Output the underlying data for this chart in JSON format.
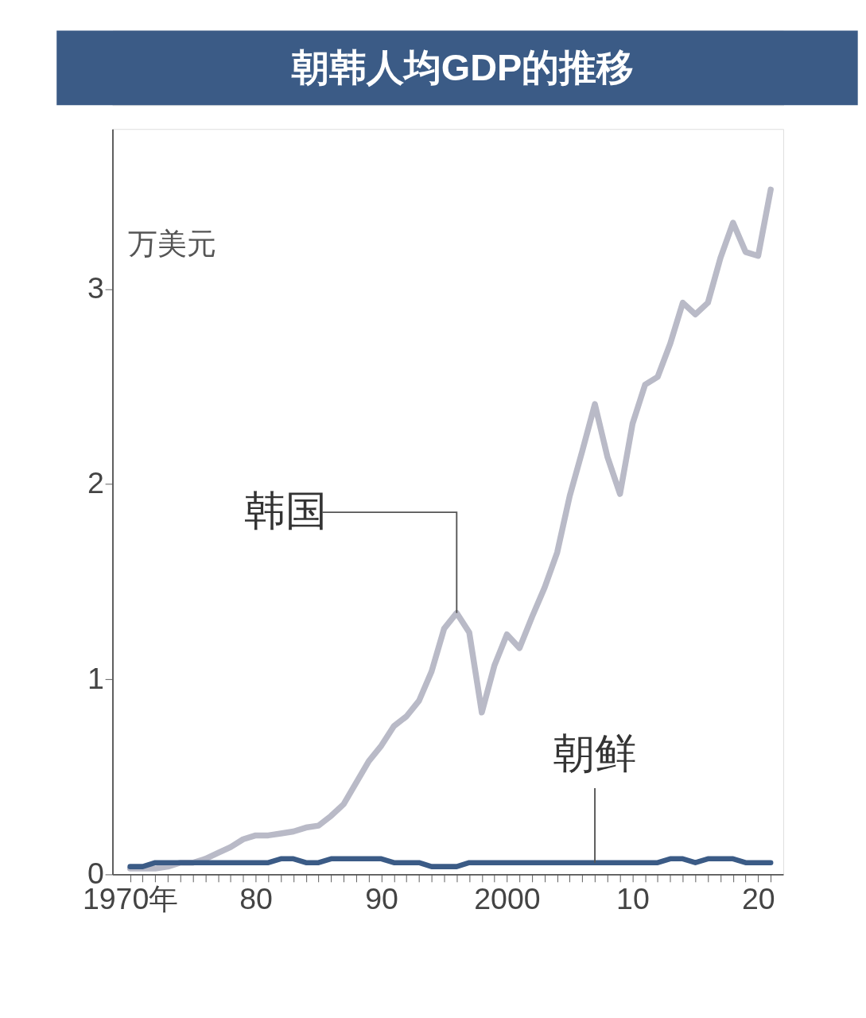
{
  "chart_data": {
    "type": "line",
    "title": "朝韩人均GDP的推移",
    "ylabel": "万美元",
    "x": [
      1970,
      1971,
      1972,
      1973,
      1974,
      1975,
      1976,
      1977,
      1978,
      1979,
      1980,
      1981,
      1982,
      1983,
      1984,
      1985,
      1986,
      1987,
      1988,
      1989,
      1990,
      1991,
      1992,
      1993,
      1994,
      1995,
      1996,
      1997,
      1998,
      1999,
      2000,
      2001,
      2002,
      2003,
      2004,
      2005,
      2006,
      2007,
      2008,
      2009,
      2010,
      2011,
      2012,
      2013,
      2014,
      2015,
      2016,
      2017,
      2018,
      2019,
      2020,
      2021
    ],
    "series": [
      {
        "color": "#b9bac7",
        "values": [
          0.03,
          0.03,
          0.03,
          0.04,
          0.06,
          0.06,
          0.08,
          0.11,
          0.14,
          0.18,
          0.2,
          0.2,
          0.21,
          0.22,
          0.24,
          0.25,
          0.3,
          0.36,
          0.47,
          0.58,
          0.66,
          0.76,
          0.81,
          0.89,
          1.04,
          1.26,
          1.34,
          1.24,
          0.83,
          1.07,
          1.23,
          1.16,
          1.32,
          1.47,
          1.65,
          1.94,
          2.17,
          2.41,
          2.14,
          1.95,
          2.31,
          2.51,
          2.55,
          2.72,
          2.93,
          2.87,
          2.93,
          3.16,
          3.34,
          3.19,
          3.17,
          3.51
        ]
      },
      {
        "color": "#3b5b86",
        "values": [
          0.04,
          0.04,
          0.06,
          0.06,
          0.06,
          0.06,
          0.06,
          0.06,
          0.06,
          0.06,
          0.06,
          0.06,
          0.08,
          0.08,
          0.06,
          0.06,
          0.08,
          0.08,
          0.08,
          0.08,
          0.08,
          0.06,
          0.06,
          0.06,
          0.04,
          0.04,
          0.04,
          0.06,
          0.06,
          0.06,
          0.06,
          0.06,
          0.06,
          0.06,
          0.06,
          0.06,
          0.06,
          0.06,
          0.06,
          0.06,
          0.06,
          0.06,
          0.06,
          0.08,
          0.08,
          0.06,
          0.08,
          0.08,
          0.08,
          0.06,
          0.06,
          0.06
        ]
      }
    ],
    "xlim": [
      1968.6,
      2022
    ],
    "xticks": [
      {
        "value": 1970,
        "label": "1970年"
      },
      {
        "value": 1971,
        "label": null
      },
      {
        "value": 1972,
        "label": null
      },
      {
        "value": 1973,
        "label": null
      },
      {
        "value": 1974,
        "label": null
      },
      {
        "value": 1975,
        "label": null
      },
      {
        "value": 1976,
        "label": null
      },
      {
        "value": 1977,
        "label": null
      },
      {
        "value": 1978,
        "label": null
      },
      {
        "value": 1979,
        "label": null
      },
      {
        "value": 1980,
        "label": "80"
      },
      {
        "value": 1981,
        "label": null
      },
      {
        "value": 1982,
        "label": null
      },
      {
        "value": 1983,
        "label": null
      },
      {
        "value": 1984,
        "label": null
      },
      {
        "value": 1985,
        "label": null
      },
      {
        "value": 1986,
        "label": null
      },
      {
        "value": 1987,
        "label": null
      },
      {
        "value": 1988,
        "label": null
      },
      {
        "value": 1989,
        "label": null
      },
      {
        "value": 1990,
        "label": "90"
      },
      {
        "value": 1991,
        "label": null
      },
      {
        "value": 1992,
        "label": null
      },
      {
        "value": 1993,
        "label": null
      },
      {
        "value": 1994,
        "label": null
      },
      {
        "value": 1995,
        "label": null
      },
      {
        "value": 1996,
        "label": null
      },
      {
        "value": 1997,
        "label": null
      },
      {
        "value": 1998,
        "label": null
      },
      {
        "value": 1999,
        "label": null
      },
      {
        "value": 2000,
        "label": "2000"
      },
      {
        "value": 2001,
        "label": null
      },
      {
        "value": 2002,
        "label": null
      },
      {
        "value": 2003,
        "label": null
      },
      {
        "value": 2004,
        "label": null
      },
      {
        "value": 2005,
        "label": null
      },
      {
        "value": 2006,
        "label": null
      },
      {
        "value": 2007,
        "label": null
      },
      {
        "value": 2008,
        "label": null
      },
      {
        "value": 2009,
        "label": null
      },
      {
        "value": 2010,
        "label": "10"
      },
      {
        "value": 2011,
        "label": null
      },
      {
        "value": 2012,
        "label": null
      },
      {
        "value": 2013,
        "label": null
      },
      {
        "value": 2014,
        "label": null
      },
      {
        "value": 2015,
        "label": null
      },
      {
        "value": 2016,
        "label": null
      },
      {
        "value": 2017,
        "label": null
      },
      {
        "value": 2018,
        "label": null
      },
      {
        "value": 2019,
        "label": null
      },
      {
        "value": 2020,
        "label": "20"
      },
      {
        "value": 2021,
        "label": null
      }
    ],
    "ylim": [
      0,
      3.82
    ],
    "yticks": [
      0,
      1,
      2,
      3
    ],
    "annotations": [
      {
        "text": "韩国",
        "x": 1996,
        "y": 1.34
      },
      {
        "text": "朝鲜",
        "x": 2007,
        "y": 0.06
      }
    ],
    "grid": false,
    "legend": false,
    "marker": "none",
    "line_style": "solid"
  }
}
